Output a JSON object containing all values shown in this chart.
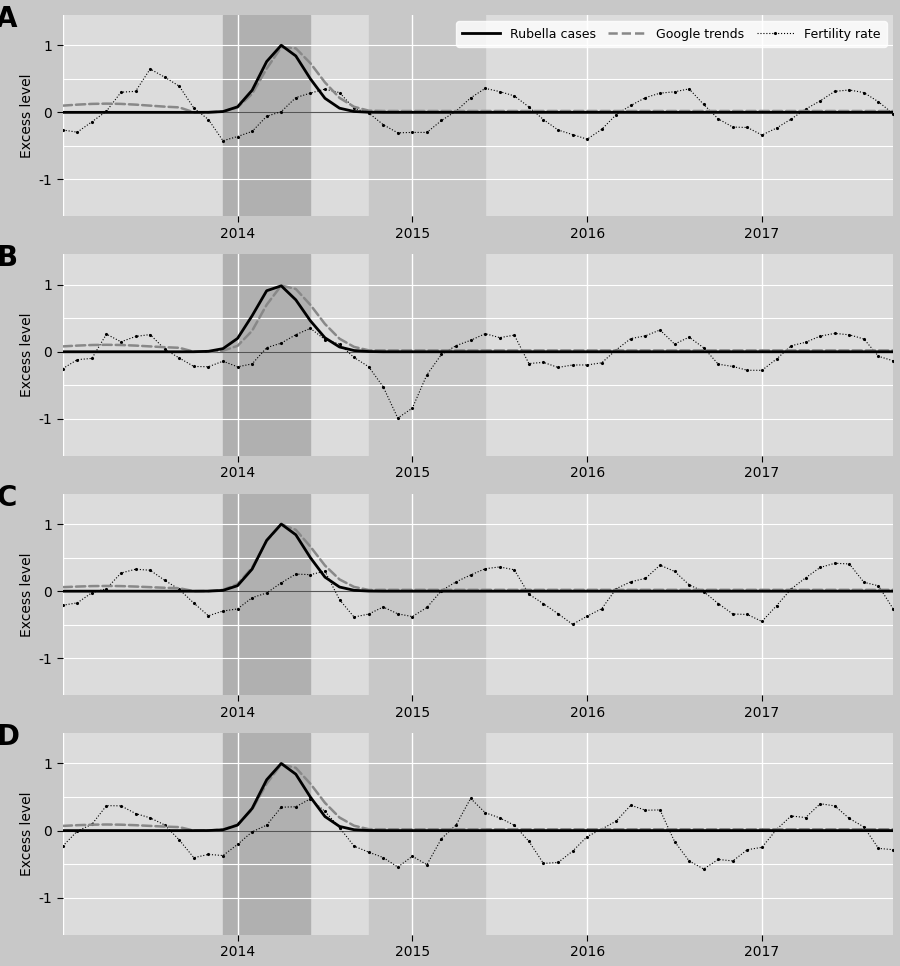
{
  "panel_labels": [
    "A",
    "B",
    "C",
    "D"
  ],
  "ylabel": "Excess level",
  "xlim": [
    2013.0,
    2017.75
  ],
  "ylim": [
    -1.55,
    1.45
  ],
  "yticks": [
    -1,
    0,
    1
  ],
  "yticklabels": [
    "-1",
    "0",
    "1"
  ],
  "fig_bg_color": "#c8c8c8",
  "panel_bg_color": "#dcdcdc",
  "shade1_color": "#b0b0b0",
  "shade2_color": "#c8c8c8",
  "shade_A_1": [
    2013.9167,
    2014.4167
  ],
  "shade_A_2": [
    2014.75,
    2015.4167
  ],
  "shade_B_1": [
    2013.9167,
    2014.4167
  ],
  "shade_B_2": [
    2014.75,
    2015.4167
  ],
  "shade_C_1": [
    2013.9167,
    2014.4167
  ],
  "shade_C_2": [
    2014.75,
    2015.4167
  ],
  "shade_D_1": [
    2013.9167,
    2014.4167
  ],
  "shade_D_2": [
    2014.75,
    2015.4167
  ],
  "xticks": [
    2014,
    2015,
    2016,
    2017
  ],
  "xticklabels": [
    "2014",
    "2015",
    "2016",
    "2017"
  ],
  "start_year": 2013.0,
  "n_months": 60,
  "rubella_lw": 2.0,
  "google_lw": 1.8,
  "legend_fontsize": 9,
  "axis_fontsize": 10,
  "label_fontsize": 20,
  "ylabel_fontsize": 10
}
